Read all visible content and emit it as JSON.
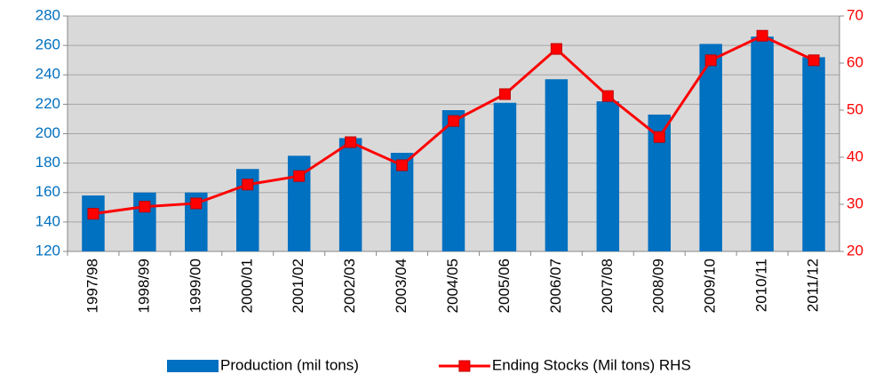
{
  "chart_data": {
    "type": "bar_line",
    "categories": [
      "1997/98",
      "1998/99",
      "1999/00",
      "2000/01",
      "2001/02",
      "2002/03",
      "2003/04",
      "2004/05",
      "2005/06",
      "2006/07",
      "2007/08",
      "2008/09",
      "2009/10",
      "2010/11",
      "2011/12"
    ],
    "series": [
      {
        "name": "Production (mil tons)",
        "type": "bar",
        "color": "#0070c0",
        "axis": "y",
        "values": [
          158,
          160,
          160,
          176,
          185,
          197,
          187,
          216,
          221,
          237,
          222,
          213,
          261,
          266,
          252
        ]
      },
      {
        "name": "Ending Stocks (Mil tons) RHS",
        "type": "line",
        "color": "#ff0000",
        "axis": "y2",
        "values": [
          28,
          29.5,
          30.2,
          34.2,
          36,
          43.2,
          38.3,
          47.7,
          53.4,
          63,
          53,
          44.3,
          60.6,
          65.8,
          60.6
        ]
      }
    ],
    "ylim": [
      120,
      280
    ],
    "yticks": [
      120,
      140,
      160,
      180,
      200,
      220,
      240,
      260,
      280
    ],
    "y2lim": [
      20,
      70
    ],
    "y2ticks": [
      20,
      30,
      40,
      50,
      60,
      70
    ],
    "grid": true,
    "legend": "bottom"
  }
}
